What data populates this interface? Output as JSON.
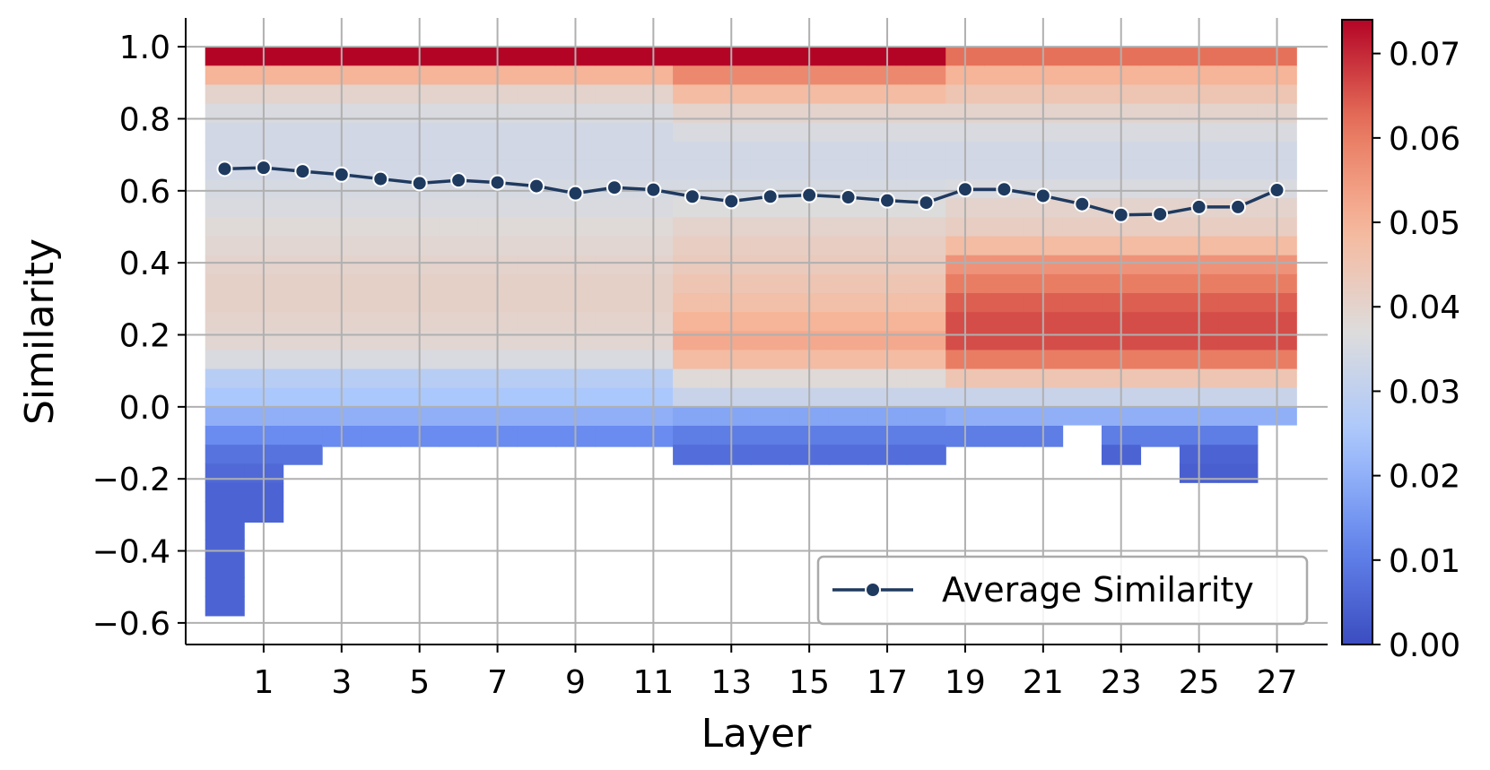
{
  "chart_data": {
    "type": "heatmap",
    "title": "",
    "xlabel": "Layer",
    "ylabel": "Similarity",
    "x_ticks": [
      "1",
      "3",
      "5",
      "7",
      "9",
      "11",
      "13",
      "15",
      "17",
      "19",
      "21",
      "23",
      "25",
      "27"
    ],
    "y_ticks": [
      "1.0",
      "0.8",
      "0.6",
      "0.4",
      "0.2",
      "0.0",
      "−0.2",
      "−0.4",
      "−0.6"
    ],
    "xlim": [
      -1,
      28.3
    ],
    "ylim": [
      -0.66,
      1.08
    ],
    "layers": [
      0,
      1,
      2,
      3,
      4,
      5,
      6,
      7,
      8,
      9,
      10,
      11,
      12,
      13,
      14,
      15,
      16,
      17,
      18,
      19,
      20,
      21,
      22,
      23,
      24,
      25,
      26,
      27
    ],
    "similarity_bins": {
      "top": 1.0,
      "bin_width": 0.05263,
      "count": 30
    },
    "colorbar": {
      "min": 0.0,
      "max": 0.074,
      "ticks": [
        "0.00",
        "0.01",
        "0.02",
        "0.03",
        "0.04",
        "0.05",
        "0.06",
        "0.07"
      ]
    },
    "colormap": [
      "#3b4cc0",
      "#6688ee",
      "#aac7fd",
      "#dddcdc",
      "#f7b89c",
      "#e7745b",
      "#b40426"
    ],
    "heatmap_profiles": [
      {
        "name": "early",
        "values": [
          0.074,
          0.05,
          0.04,
          0.036,
          0.034,
          0.034,
          0.034,
          0.035,
          0.036,
          0.038,
          0.039,
          0.04,
          0.041,
          0.041,
          0.04,
          0.039,
          0.036,
          0.028,
          0.025,
          0.02,
          0.013,
          0.008,
          0.006,
          0.005,
          0.005,
          0.005,
          0.005,
          0.005,
          0.005,
          0.005
        ]
      },
      {
        "name": "mid",
        "values": [
          0.074,
          0.058,
          0.048,
          0.04,
          0.036,
          0.034,
          0.034,
          0.035,
          0.037,
          0.04,
          0.042,
          0.043,
          0.045,
          0.047,
          0.05,
          0.052,
          0.048,
          0.038,
          0.032,
          0.018,
          0.01,
          0.007,
          0.005
        ]
      },
      {
        "name": "late",
        "values": [
          0.062,
          0.05,
          0.045,
          0.04,
          0.036,
          0.034,
          0.034,
          0.036,
          0.04,
          0.042,
          0.048,
          0.056,
          0.06,
          0.064,
          0.066,
          0.066,
          0.06,
          0.045,
          0.032,
          0.02,
          0.01,
          0.005,
          0.004
        ]
      }
    ],
    "heatmap_columns": [
      {
        "layer": 0,
        "min": -0.58,
        "profile": "early"
      },
      {
        "layer": 1,
        "min": -0.32,
        "profile": "early"
      },
      {
        "layer": 2,
        "min": -0.16,
        "profile": "early"
      },
      {
        "layer": 3,
        "min": -0.11,
        "profile": "early"
      },
      {
        "layer": 4,
        "min": -0.11,
        "profile": "early"
      },
      {
        "layer": 5,
        "min": -0.11,
        "profile": "early"
      },
      {
        "layer": 6,
        "min": -0.11,
        "profile": "early"
      },
      {
        "layer": 7,
        "min": -0.11,
        "profile": "early"
      },
      {
        "layer": 8,
        "min": -0.11,
        "profile": "early"
      },
      {
        "layer": 9,
        "min": -0.11,
        "profile": "early"
      },
      {
        "layer": 10,
        "min": -0.11,
        "profile": "early"
      },
      {
        "layer": 11,
        "min": -0.11,
        "profile": "early"
      },
      {
        "layer": 12,
        "min": -0.16,
        "profile": "mid"
      },
      {
        "layer": 13,
        "min": -0.16,
        "profile": "mid"
      },
      {
        "layer": 14,
        "min": -0.16,
        "profile": "mid"
      },
      {
        "layer": 15,
        "min": -0.16,
        "profile": "mid"
      },
      {
        "layer": 16,
        "min": -0.16,
        "profile": "mid"
      },
      {
        "layer": 17,
        "min": -0.16,
        "profile": "mid"
      },
      {
        "layer": 18,
        "min": -0.16,
        "profile": "mid"
      },
      {
        "layer": 19,
        "min": -0.11,
        "profile": "late"
      },
      {
        "layer": 20,
        "min": -0.11,
        "profile": "late"
      },
      {
        "layer": 21,
        "min": -0.11,
        "profile": "late"
      },
      {
        "layer": 22,
        "min": -0.05,
        "profile": "late"
      },
      {
        "layer": 23,
        "min": -0.16,
        "profile": "late"
      },
      {
        "layer": 24,
        "min": -0.11,
        "profile": "late"
      },
      {
        "layer": 25,
        "min": -0.21,
        "profile": "late"
      },
      {
        "layer": 26,
        "min": -0.21,
        "profile": "late"
      },
      {
        "layer": 27,
        "min": -0.05,
        "profile": "late"
      }
    ],
    "series": [
      {
        "name": "Average Similarity",
        "color": "#1f3a5f",
        "x": [
          0,
          1,
          2,
          3,
          4,
          5,
          6,
          7,
          8,
          9,
          10,
          11,
          12,
          13,
          14,
          15,
          16,
          17,
          18,
          19,
          20,
          21,
          22,
          23,
          24,
          25,
          26,
          27
        ],
        "values": [
          0.661,
          0.664,
          0.654,
          0.645,
          0.633,
          0.621,
          0.629,
          0.623,
          0.613,
          0.593,
          0.609,
          0.603,
          0.584,
          0.571,
          0.584,
          0.588,
          0.582,
          0.573,
          0.567,
          0.604,
          0.604,
          0.586,
          0.563,
          0.533,
          0.535,
          0.555,
          0.555,
          0.602
        ]
      }
    ],
    "legend": {
      "position": "bottom-right",
      "label": "Average Similarity"
    }
  }
}
